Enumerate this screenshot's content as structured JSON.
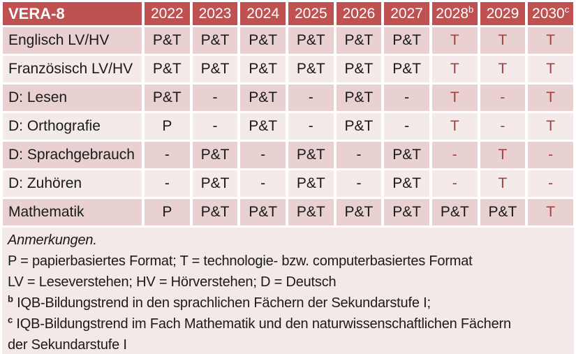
{
  "colors": {
    "header_bg": "#bf5150",
    "header_text": "#ffffff",
    "band_dark": "#e8d1d0",
    "band_light": "#f3eae9",
    "notes_bg": "#f3e9e8",
    "body_text": "#1a1a1a",
    "accent_text": "#a1413f"
  },
  "table": {
    "corner": "VERA-8",
    "years": [
      {
        "label": "2022",
        "sup": ""
      },
      {
        "label": "2023",
        "sup": ""
      },
      {
        "label": "2024",
        "sup": ""
      },
      {
        "label": "2025",
        "sup": ""
      },
      {
        "label": "2026",
        "sup": ""
      },
      {
        "label": "2027",
        "sup": ""
      },
      {
        "label": "2028",
        "sup": "b"
      },
      {
        "label": "2029",
        "sup": ""
      },
      {
        "label": "2030",
        "sup": "c"
      }
    ],
    "rows": [
      {
        "label": "Englisch LV/HV",
        "cells": [
          {
            "t": "P&T",
            "red": false
          },
          {
            "t": "P&T",
            "red": false
          },
          {
            "t": "P&T",
            "red": false
          },
          {
            "t": "P&T",
            "red": false
          },
          {
            "t": "P&T",
            "red": false
          },
          {
            "t": "P&T",
            "red": false
          },
          {
            "t": "T",
            "red": true
          },
          {
            "t": "T",
            "red": true
          },
          {
            "t": "T",
            "red": true
          }
        ]
      },
      {
        "label": "Französisch LV/HV",
        "cells": [
          {
            "t": "P&T",
            "red": false
          },
          {
            "t": "P&T",
            "red": false
          },
          {
            "t": "P&T",
            "red": false
          },
          {
            "t": "P&T",
            "red": false
          },
          {
            "t": "P&T",
            "red": false
          },
          {
            "t": "P&T",
            "red": false
          },
          {
            "t": "T",
            "red": true
          },
          {
            "t": "T",
            "red": true
          },
          {
            "t": "T",
            "red": true
          }
        ]
      },
      {
        "label": "D: Lesen",
        "cells": [
          {
            "t": "P&T",
            "red": false
          },
          {
            "t": "-",
            "red": false
          },
          {
            "t": "P&T",
            "red": false
          },
          {
            "t": "-",
            "red": false
          },
          {
            "t": "P&T",
            "red": false
          },
          {
            "t": "-",
            "red": false
          },
          {
            "t": "T",
            "red": true
          },
          {
            "t": "-",
            "red": true
          },
          {
            "t": "T",
            "red": true
          }
        ]
      },
      {
        "label": "D: Orthografie",
        "cells": [
          {
            "t": "P",
            "red": false
          },
          {
            "t": "-",
            "red": false
          },
          {
            "t": "P&T",
            "red": false
          },
          {
            "t": "-",
            "red": false
          },
          {
            "t": "P&T",
            "red": false
          },
          {
            "t": "-",
            "red": false
          },
          {
            "t": "T",
            "red": true
          },
          {
            "t": "-",
            "red": true
          },
          {
            "t": "T",
            "red": true
          }
        ]
      },
      {
        "label": "D: Sprachgebrauch",
        "cells": [
          {
            "t": "-",
            "red": false
          },
          {
            "t": "P&T",
            "red": false
          },
          {
            "t": "-",
            "red": false
          },
          {
            "t": "P&T",
            "red": false
          },
          {
            "t": "-",
            "red": false
          },
          {
            "t": "P&T",
            "red": false
          },
          {
            "t": "-",
            "red": true
          },
          {
            "t": "T",
            "red": true
          },
          {
            "t": "-",
            "red": true
          }
        ]
      },
      {
        "label": "D: Zuhören",
        "cells": [
          {
            "t": "-",
            "red": false
          },
          {
            "t": "P&T",
            "red": false
          },
          {
            "t": "-",
            "red": false
          },
          {
            "t": "P&T",
            "red": false
          },
          {
            "t": "-",
            "red": false
          },
          {
            "t": "P&T",
            "red": false
          },
          {
            "t": "-",
            "red": true
          },
          {
            "t": "T",
            "red": true
          },
          {
            "t": "-",
            "red": true
          }
        ]
      },
      {
        "label": "Mathematik",
        "cells": [
          {
            "t": "P",
            "red": false
          },
          {
            "t": "P&T",
            "red": false
          },
          {
            "t": "P&T",
            "red": false
          },
          {
            "t": "P&T",
            "red": false
          },
          {
            "t": "P&T",
            "red": false
          },
          {
            "t": "P&T",
            "red": false
          },
          {
            "t": "P&T",
            "red": false
          },
          {
            "t": "P&T",
            "red": false
          },
          {
            "t": "T",
            "red": true
          }
        ]
      }
    ]
  },
  "notes": {
    "title": "Anmerkungen.",
    "formats": "P = papierbasiertes Format; T = technologie- bzw. computerbasiertes Format",
    "abbreviations": "LV = Leseverstehen; HV = Hörverstehen; D = Deutsch",
    "note_b": {
      "sup": "b",
      "text": "IQB-Bildungstrend in den sprachlichen Fächern der Sekundarstufe I;"
    },
    "note_c": {
      "sup": "c",
      "text": "IQB-Bildungstrend im Fach Mathematik und den naturwissenschaftlichen Fächern der Sekundarstufe I"
    }
  }
}
